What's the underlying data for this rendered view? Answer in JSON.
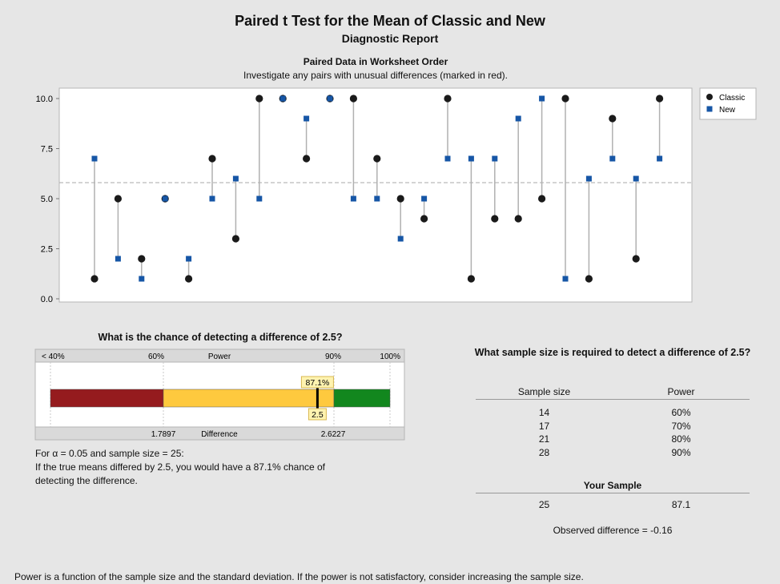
{
  "header": {
    "title": "Paired t Test for the Mean of Classic and New",
    "subtitle": "Diagnostic Report"
  },
  "chart_data": [
    {
      "type": "scatter",
      "title": "Paired Data in Worksheet Order",
      "subtitle": "Investigate any pairs with unusual differences (marked in red).",
      "ylim": [
        0,
        10
      ],
      "yticks": [
        "0.0",
        "2.5",
        "5.0",
        "7.5",
        "10.0"
      ],
      "reference_line": 5.8,
      "legend_position": "top-right",
      "x": [
        1,
        2,
        3,
        4,
        5,
        6,
        7,
        8,
        9,
        10,
        11,
        12,
        13,
        14,
        15,
        16,
        17,
        18,
        19,
        20,
        21,
        22,
        23,
        24,
        25
      ],
      "series": [
        {
          "name": "Classic",
          "color": "#1a1a1a",
          "marker": "circle",
          "values": [
            1,
            5,
            2,
            5,
            1,
            7,
            3,
            10,
            10,
            7,
            10,
            10,
            7,
            5,
            4,
            10,
            1,
            4,
            4,
            5,
            10,
            1,
            9,
            2,
            10
          ]
        },
        {
          "name": "New",
          "color": "#1656a6",
          "marker": "square",
          "values": [
            7,
            2,
            1,
            5,
            2,
            5,
            6,
            5,
            10,
            9,
            10,
            5,
            5,
            3,
            5,
            7,
            7,
            7,
            9,
            10,
            1,
            6,
            7,
            6,
            7
          ]
        }
      ]
    },
    {
      "type": "bar",
      "title": "What is the chance of detecting a difference of 2.5?",
      "top_labels": [
        "< 40%",
        "60%",
        "Power",
        "90%",
        "100%"
      ],
      "bottom_labels": [
        "1.7897",
        "Difference",
        "2.6227"
      ],
      "marker_power": "87.1%",
      "marker_difference": "2.5",
      "power_value": 87.1,
      "colors": {
        "low": "#951b1e",
        "mid": "#fec93e",
        "high": "#12871e"
      }
    }
  ],
  "power_text": {
    "line1": "For α = 0.05 and sample size = 25:",
    "line2": "If the true means differed by 2.5, you would have a 87.1% chance of",
    "line3": "detecting the difference."
  },
  "sample_size": {
    "question": "What sample size is required to detect a difference of 2.5?",
    "col1": "Sample size",
    "col2": "Power",
    "rows": [
      {
        "n": "14",
        "power": "60%"
      },
      {
        "n": "17",
        "power": "70%"
      },
      {
        "n": "21",
        "power": "80%"
      },
      {
        "n": "28",
        "power": "90%"
      }
    ],
    "your_sample_title": "Your Sample",
    "your_n": "25",
    "your_power": "87.1",
    "observed": "Observed difference = -0.16"
  },
  "footer": "Power is a function of the sample size and the standard deviation. If the power is not satisfactory, consider increasing the sample size."
}
